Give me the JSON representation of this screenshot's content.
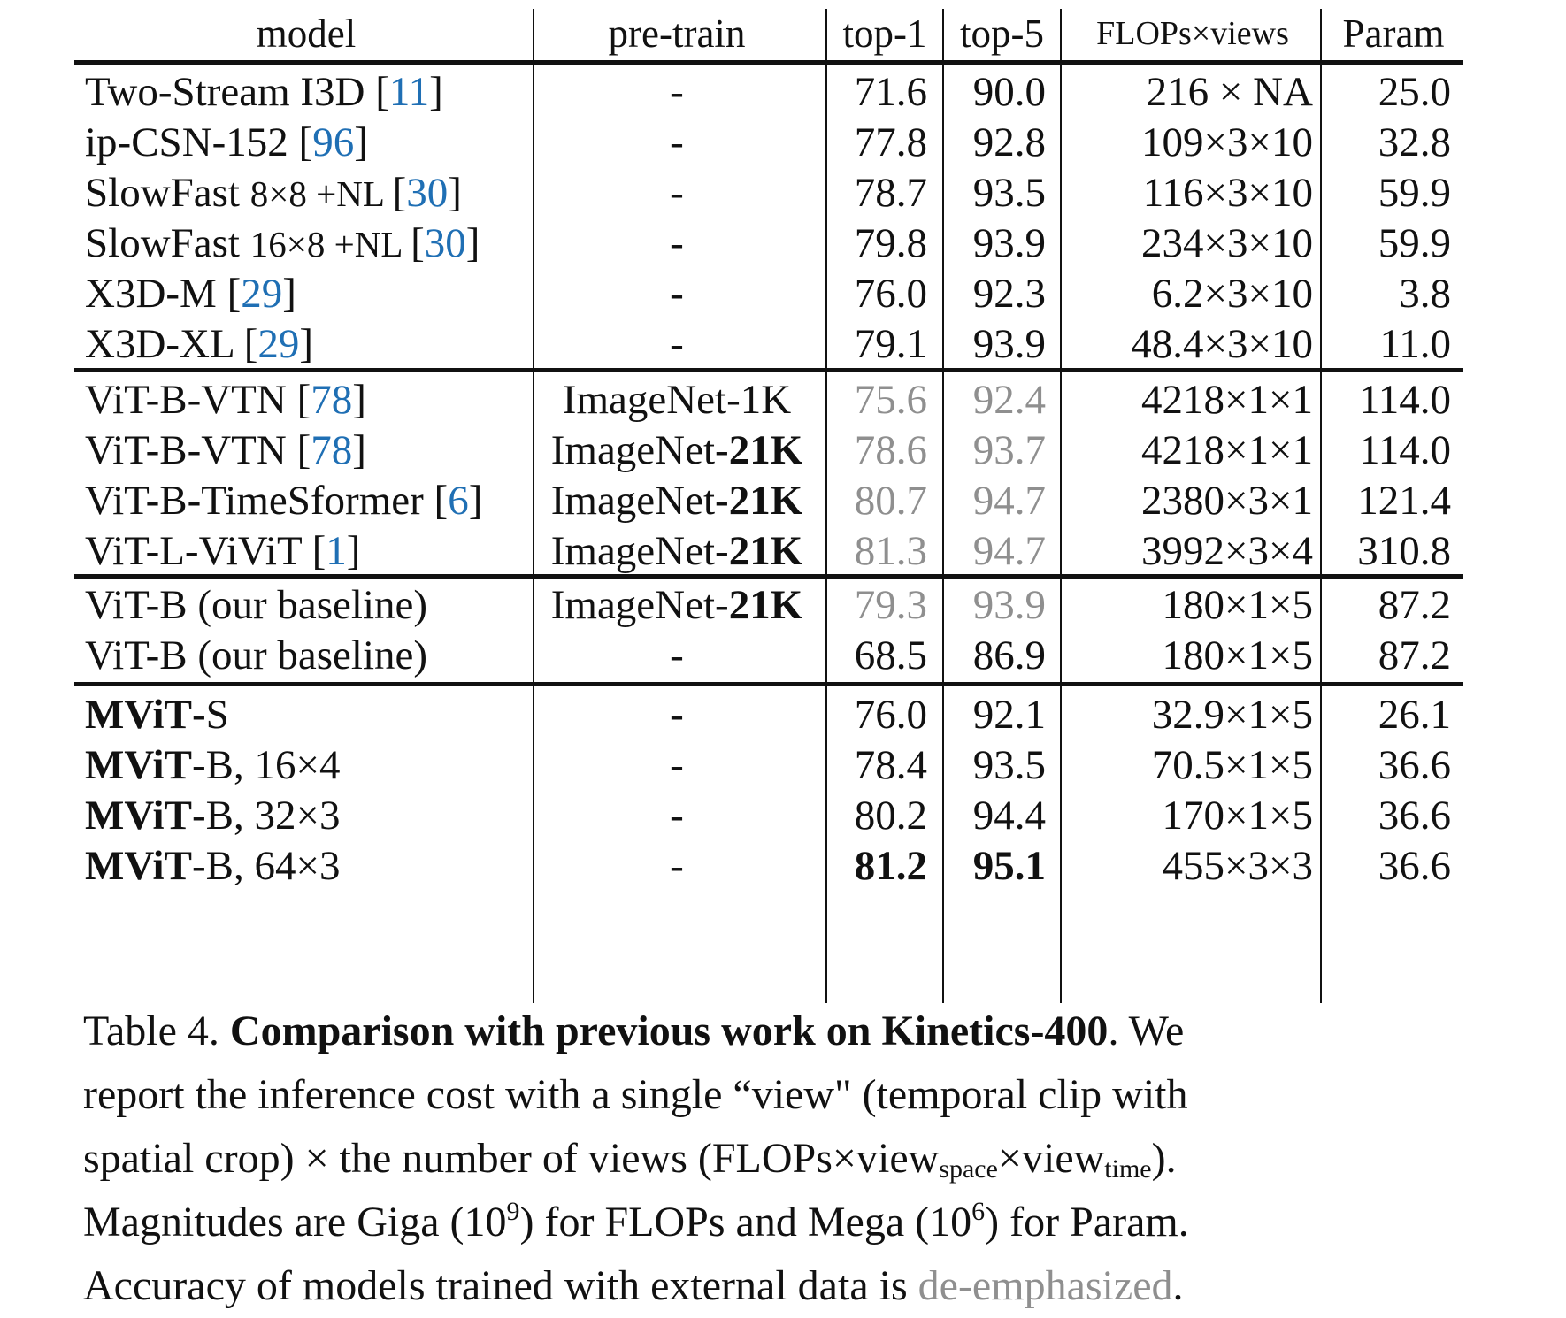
{
  "table": {
    "headers": {
      "model": "model",
      "pretrain": "pre-train",
      "top1": "top-1",
      "top5": "top-5",
      "flops": "FLOPs×views",
      "param": "Param"
    },
    "groups": [
      {
        "rows": [
          {
            "model": "Two-Stream I3D ",
            "model_suffix": "",
            "cite": "11",
            "pretrain": "-",
            "pretrain_bold": "",
            "top1": "71.6",
            "top5": "90.0",
            "flops": "216 × NA",
            "param": "25.0",
            "deemph": false,
            "model_bold": "",
            "model_small": ""
          },
          {
            "model": "ip-CSN-152 ",
            "model_suffix": "",
            "cite": "96",
            "pretrain": "-",
            "pretrain_bold": "",
            "top1": "77.8",
            "top5": "92.8",
            "flops": "109×3×10",
            "param": "32.8",
            "deemph": false,
            "model_bold": "",
            "model_small": ""
          },
          {
            "model": "SlowFast ",
            "model_small": "8×8 +NL ",
            "model_suffix": "",
            "cite": "30",
            "pretrain": "-",
            "pretrain_bold": "",
            "top1": "78.7",
            "top5": "93.5",
            "flops": "116×3×10",
            "param": "59.9",
            "deemph": false,
            "model_bold": ""
          },
          {
            "model": "SlowFast ",
            "model_small": "16×8 +NL ",
            "model_suffix": "",
            "cite": "30",
            "pretrain": "-",
            "pretrain_bold": "",
            "top1": "79.8",
            "top5": "93.9",
            "flops": "234×3×10",
            "param": "59.9",
            "deemph": false,
            "model_bold": ""
          },
          {
            "model": "X3D-M ",
            "model_suffix": "",
            "cite": "29",
            "pretrain": "-",
            "pretrain_bold": "",
            "top1": "76.0",
            "top5": "92.3",
            "flops": "6.2×3×10",
            "param": "3.8",
            "deemph": false,
            "model_bold": "",
            "model_small": ""
          },
          {
            "model": "X3D-XL ",
            "model_suffix": "",
            "cite": "29",
            "pretrain": "-",
            "pretrain_bold": "",
            "top1": "79.1",
            "top5": "93.9",
            "flops": "48.4×3×10",
            "param": "11.0",
            "deemph": false,
            "model_bold": "",
            "model_small": ""
          }
        ]
      },
      {
        "rows": [
          {
            "model": "ViT-B-VTN ",
            "model_suffix": "",
            "cite": "78",
            "pretrain": "ImageNet-1K",
            "pretrain_bold": "",
            "top1": "75.6",
            "top5": "92.4",
            "flops": "4218×1×1",
            "param": "114.0",
            "deemph": true,
            "model_bold": "",
            "model_small": ""
          },
          {
            "model": "ViT-B-VTN ",
            "model_suffix": "",
            "cite": "78",
            "pretrain": "ImageNet-",
            "pretrain_bold": "21K",
            "top1": "78.6",
            "top5": "93.7",
            "flops": "4218×1×1",
            "param": "114.0",
            "deemph": true,
            "model_bold": "",
            "model_small": ""
          },
          {
            "model": "ViT-B-TimeSformer ",
            "model_suffix": "",
            "cite": "6",
            "pretrain": "ImageNet-",
            "pretrain_bold": "21K",
            "top1": "80.7",
            "top5": "94.7",
            "flops": "2380×3×1",
            "param": "121.4",
            "deemph": true,
            "model_bold": "",
            "model_small": ""
          },
          {
            "model": "ViT-L-ViViT ",
            "model_suffix": "",
            "cite": "1",
            "pretrain": "ImageNet-",
            "pretrain_bold": "21K",
            "top1": "81.3",
            "top5": "94.7",
            "flops": "3992×3×4",
            "param": "310.8",
            "deemph": true,
            "model_bold": "",
            "model_small": ""
          }
        ]
      },
      {
        "rows": [
          {
            "model": "ViT-B (our baseline)",
            "model_suffix": "",
            "cite": "",
            "pretrain": "ImageNet-",
            "pretrain_bold": "21K",
            "top1": "79.3",
            "top5": "93.9",
            "flops": "180×1×5",
            "param": "87.2",
            "deemph": true,
            "model_bold": "",
            "model_small": ""
          },
          {
            "model": "ViT-B (our baseline)",
            "model_suffix": "",
            "cite": "",
            "pretrain": "-",
            "pretrain_bold": "",
            "top1": "68.5",
            "top5": "86.9",
            "flops": "180×1×5",
            "param": "87.2",
            "deemph": false,
            "model_bold": "",
            "model_small": ""
          }
        ]
      },
      {
        "rows": [
          {
            "model_bold": "MViT",
            "model": "-S",
            "model_suffix": "",
            "cite": "",
            "pretrain": "-",
            "pretrain_bold": "",
            "top1": "76.0",
            "top5": "92.1",
            "flops": "32.9×1×5",
            "param": "26.1",
            "deemph": false,
            "model_small": ""
          },
          {
            "model_bold": "MViT",
            "model": "-B, 16×4",
            "model_suffix": "",
            "cite": "",
            "pretrain": "-",
            "pretrain_bold": "",
            "top1": "78.4",
            "top5": "93.5",
            "flops": "70.5×1×5",
            "param": "36.6",
            "deemph": false,
            "model_small": ""
          },
          {
            "model_bold": "MViT",
            "model": "-B, 32×3",
            "model_suffix": "",
            "cite": "",
            "pretrain": "-",
            "pretrain_bold": "",
            "top1": "80.2",
            "top5": "94.4",
            "flops": "170×1×5",
            "param": "36.6",
            "deemph": false,
            "model_small": ""
          },
          {
            "model_bold": "MViT",
            "model": "-B, 64×3",
            "model_suffix": "",
            "cite": "",
            "pretrain": "-",
            "pretrain_bold": "",
            "top1": "81.2",
            "top5": "95.1",
            "flops": "455×3×3",
            "param": "36.6",
            "deemph": false,
            "model_small": "",
            "best": true
          }
        ]
      }
    ]
  },
  "caption": {
    "label": "Table 4. ",
    "title": "Comparison with previous work on Kinetics-400",
    "t1": ". We",
    "l2": "report the inference cost with a single “view\" (temporal clip with",
    "l3a": "spatial crop) × the number of views (FLOPs×view",
    "l3_sub1": "space",
    "l3b": "×view",
    "l3_sub2": "time",
    "l3c": ").",
    "l4a": "Magnitudes are Giga (10",
    "l4_sup1": "9",
    "l4b": ") for FLOPs and Mega (10",
    "l4_sup2": "6",
    "l4c": ") for Param.",
    "l5a": "Accuracy of models trained with external data is ",
    "l5_gray": "de-emphasized",
    "l5b": "."
  }
}
